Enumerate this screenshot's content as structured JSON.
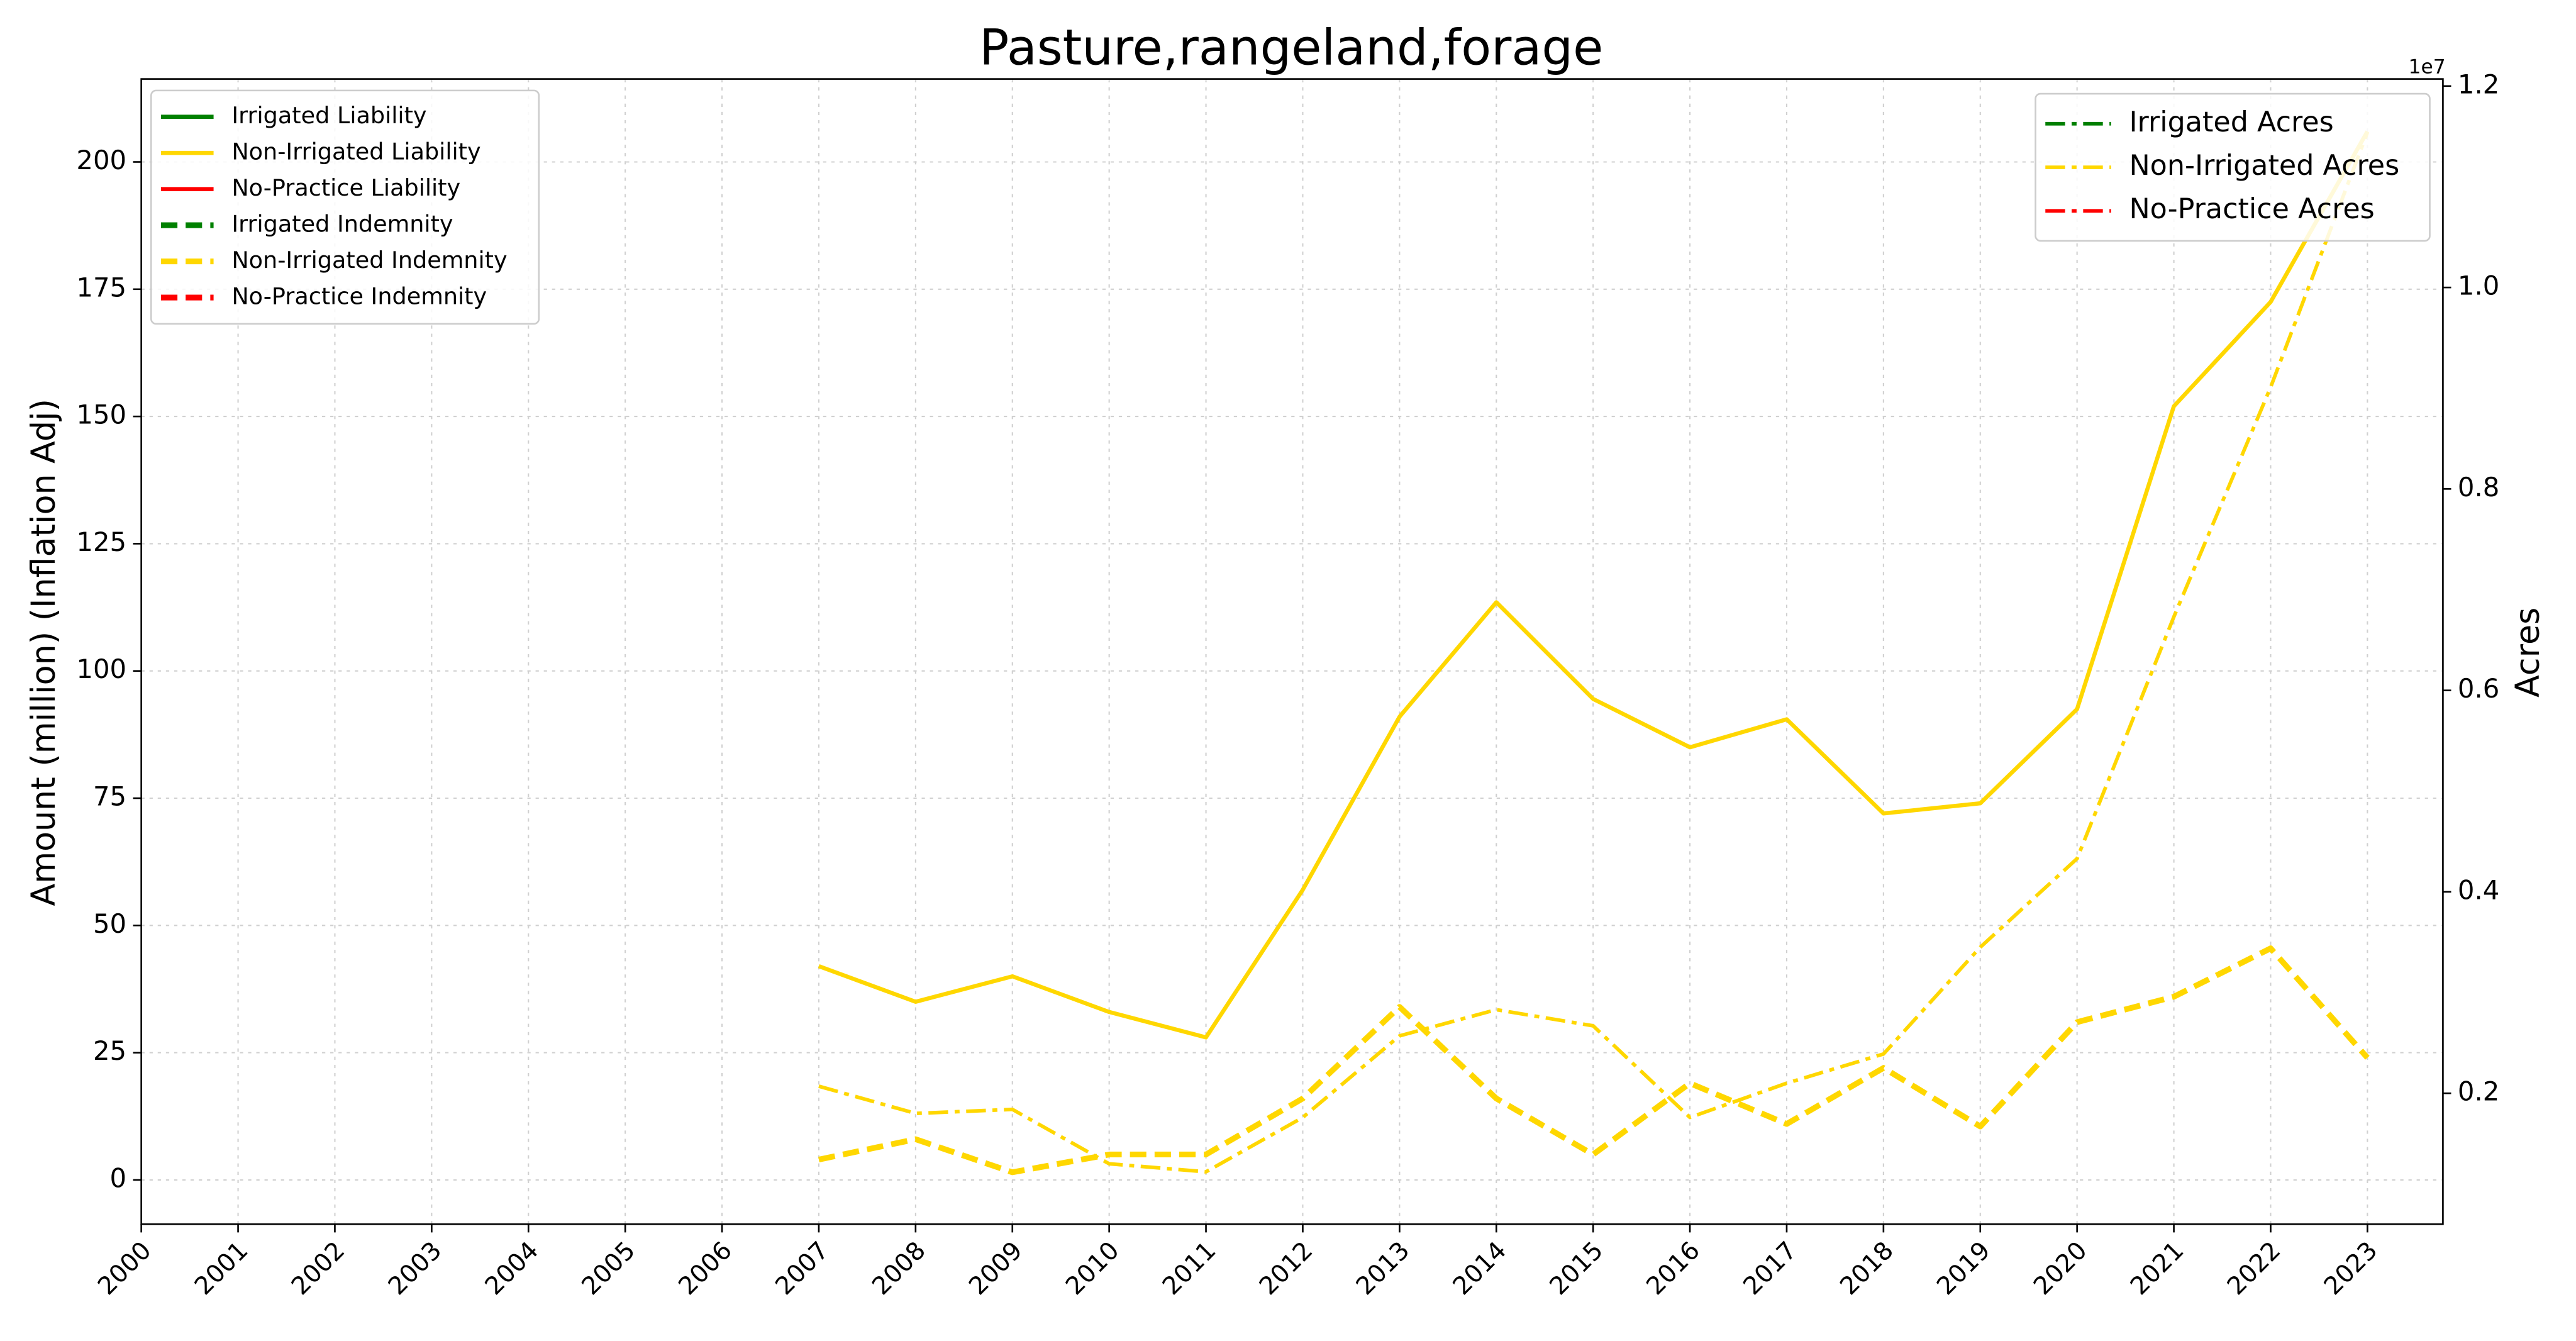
{
  "chart_data": {
    "type": "line",
    "title": "Pasture,rangeland,forage",
    "y_label": "Amount (million) (Inflation Adj)",
    "y2_label": "Acres",
    "y2_offset_label": "1e7",
    "x": [
      2007,
      2008,
      2009,
      2010,
      2011,
      2012,
      2013,
      2014,
      2015,
      2016,
      2017,
      2018,
      2019,
      2020,
      2021,
      2022,
      2023
    ],
    "xlim": [
      2000,
      2023.78
    ],
    "xticks": [
      2000,
      2001,
      2002,
      2003,
      2004,
      2005,
      2006,
      2007,
      2008,
      2009,
      2010,
      2011,
      2012,
      2013,
      2014,
      2015,
      2016,
      2017,
      2018,
      2019,
      2020,
      2021,
      2022,
      2023
    ],
    "ylim": [
      -8.7,
      216.3
    ],
    "yticks": [
      0,
      25,
      50,
      75,
      100,
      125,
      150,
      175,
      200
    ],
    "y2lim": [
      0.07,
      1.207
    ],
    "y2ticks": [
      0.2,
      0.4,
      0.6,
      0.8,
      {
        "value": 1,
        "label": "1.0"
      },
      1.2
    ],
    "grid": true,
    "legend": "upper left",
    "legend2": "upper right",
    "series": [
      {
        "name": "Irrigated Liability",
        "color": "#008000",
        "style": "solid",
        "axis": "y",
        "values": [
          null,
          null,
          null,
          null,
          null,
          null,
          null,
          null,
          null,
          null,
          null,
          null,
          null,
          null,
          null,
          null,
          null
        ]
      },
      {
        "name": "Non-Irrigated Liability",
        "color": "#ffd700",
        "style": "solid",
        "axis": "y",
        "values": [
          42,
          35,
          40,
          33,
          28,
          57,
          91,
          113.5,
          94.5,
          85,
          90.5,
          72,
          74,
          92.5,
          152,
          172.5,
          206
        ]
      },
      {
        "name": "No-Practice Liability",
        "color": "#ff0000",
        "style": "solid",
        "axis": "y",
        "values": [
          null,
          null,
          null,
          null,
          null,
          null,
          null,
          null,
          null,
          null,
          null,
          null,
          null,
          null,
          null,
          null,
          null
        ]
      },
      {
        "name": "Irrigated Indemnity",
        "color": "#008000",
        "style": "dashed",
        "axis": "y",
        "values": [
          null,
          null,
          null,
          null,
          null,
          null,
          null,
          null,
          null,
          null,
          null,
          null,
          null,
          null,
          null,
          null,
          null
        ]
      },
      {
        "name": "Non-Irrigated Indemnity",
        "color": "#ffd700",
        "style": "dashed",
        "axis": "y",
        "values": [
          4,
          8,
          1.5,
          5,
          5,
          16,
          34,
          16,
          5,
          19,
          11,
          22,
          10.5,
          31,
          36,
          45.5,
          24
        ]
      },
      {
        "name": "No-Practice Indemnity",
        "color": "#ff0000",
        "style": "dashed",
        "axis": "y",
        "values": [
          null,
          null,
          null,
          null,
          null,
          null,
          null,
          null,
          null,
          null,
          null,
          null,
          null,
          null,
          null,
          null,
          null
        ]
      },
      {
        "name": "Irrigated Acres",
        "color": "#008000",
        "style": "dashdot",
        "axis": "y2",
        "values": [
          null,
          null,
          null,
          null,
          null,
          null,
          null,
          null,
          null,
          null,
          null,
          null,
          null,
          null,
          null,
          null,
          null
        ]
      },
      {
        "name": "Non-Irrigated Acres",
        "color": "#ffd700",
        "style": "dashdot",
        "axis": "y2",
        "values": [
          0.207,
          0.18,
          0.184,
          0.13,
          0.122,
          0.176,
          0.257,
          0.283,
          0.267,
          0.176,
          0.21,
          0.239,
          0.345,
          0.433,
          0.673,
          0.901,
          1.154
        ]
      },
      {
        "name": "No-Practice Acres",
        "color": "#ff0000",
        "style": "dashdot",
        "axis": "y2",
        "values": [
          null,
          null,
          null,
          null,
          null,
          null,
          null,
          null,
          null,
          null,
          null,
          null,
          null,
          null,
          null,
          null,
          null
        ]
      }
    ]
  }
}
